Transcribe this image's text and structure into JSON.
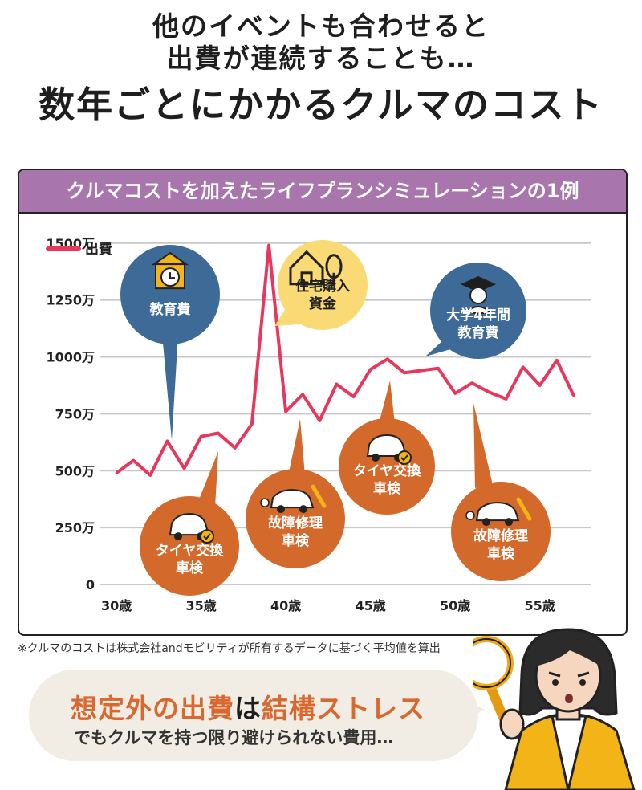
{
  "header": {
    "line1": "他のイベントも合わせると",
    "line2": "出費が連続することも…",
    "title": "数年ごとにかかるクルマのコスト"
  },
  "panel": {
    "title": "クルマコストを加えたライフプランシミュレーションの1例"
  },
  "chart_data": {
    "type": "line",
    "legend": "出費",
    "legend_position": "top-left",
    "grid": true,
    "ylim": [
      0,
      1600
    ],
    "yticks": [
      {
        "value": 0,
        "label": "0"
      },
      {
        "value": 250,
        "label": "250万"
      },
      {
        "value": 500,
        "label": "500万"
      },
      {
        "value": 750,
        "label": "750万"
      },
      {
        "value": 1000,
        "label": "1000万"
      },
      {
        "value": 1250,
        "label": "1250万"
      },
      {
        "value": 1500,
        "label": "1500万"
      }
    ],
    "xticks": [
      {
        "value": 30,
        "label": "30歳"
      },
      {
        "value": 35,
        "label": "35歳"
      },
      {
        "value": 40,
        "label": "40歳"
      },
      {
        "value": 45,
        "label": "45歳"
      },
      {
        "value": 50,
        "label": "50歳"
      },
      {
        "value": 55,
        "label": "55歳"
      }
    ],
    "xlim": [
      29,
      58
    ],
    "series": [
      {
        "name": "出費",
        "color": "#e8365d",
        "x": [
          30,
          31,
          32,
          33,
          34,
          35,
          36,
          37,
          38,
          39,
          40,
          41,
          42,
          43,
          44,
          45,
          46,
          47,
          48,
          49,
          50,
          51,
          52,
          53,
          54,
          55,
          56,
          57
        ],
        "y": [
          490,
          545,
          480,
          630,
          510,
          650,
          665,
          600,
          705,
          1490,
          760,
          835,
          720,
          880,
          825,
          945,
          990,
          930,
          940,
          950,
          840,
          885,
          845,
          815,
          955,
          875,
          985,
          830
        ]
      }
    ],
    "annotations": [
      {
        "id": "edu",
        "text": "教育費",
        "icon": "clock-house-icon",
        "color": "#3d6a96"
      },
      {
        "id": "house",
        "text": "住宅購入\n資金",
        "icon": "house-tree-icon",
        "color": "#f9da75"
      },
      {
        "id": "univ",
        "text": "大学4年間\n教育費",
        "icon": "graduate-icon",
        "color": "#3d6a96"
      },
      {
        "id": "tire1",
        "text": "タイヤ交換\n車検",
        "icon": "car-check-icon",
        "color": "#d4692c"
      },
      {
        "id": "repair1",
        "text": "故障修理\n車検",
        "icon": "car-wrench-icon",
        "color": "#d4692c"
      },
      {
        "id": "tire2",
        "text": "タイヤ交換\n車検",
        "icon": "car-check-icon",
        "color": "#d4692c"
      },
      {
        "id": "repair2",
        "text": "故障修理\n車検",
        "icon": "car-wrench-icon",
        "color": "#d4692c"
      }
    ]
  },
  "note": "※クルマのコストは株式会社andモビリティが所有するデータに基づく平均値を算出",
  "message": {
    "part1": "想定外の出費",
    "part2": "は",
    "part3": "結構ストレス",
    "line2": "でもクルマを持つ限り避けられない費用…"
  },
  "colors": {
    "accent": "#d9672e",
    "panel_header": "#a876ad",
    "line": "#e8365d"
  }
}
